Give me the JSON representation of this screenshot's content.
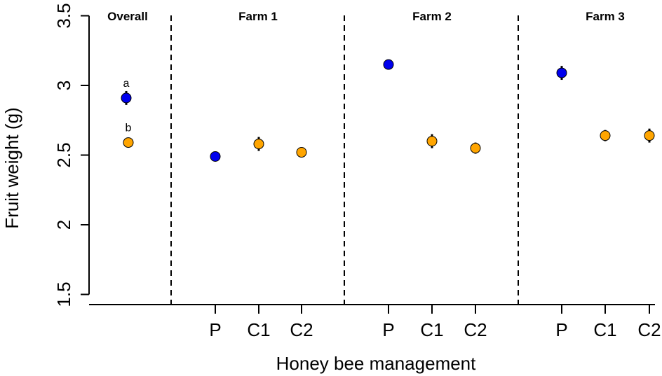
{
  "chart_data": {
    "type": "scatter",
    "title": "",
    "xlabel": "Honey bee management",
    "ylabel": "Fruit weight (g)",
    "ylim": [
      1.45,
      3.5
    ],
    "yticks": [
      "1.5",
      "2",
      "2.5",
      "3",
      "3.5"
    ],
    "grid": false,
    "legend": "none",
    "colors": {
      "P": "#0000ee",
      "C": "#ffa500"
    },
    "panels": [
      {
        "title": "Overall",
        "points": [
          {
            "category": "",
            "group": "P",
            "value": 2.91,
            "err": 0.05,
            "label": "a"
          },
          {
            "category": "",
            "group": "C",
            "value": 2.59,
            "err": 0.03,
            "label": "b"
          }
        ]
      },
      {
        "title": "Farm 1",
        "points": [
          {
            "category": "P",
            "group": "P",
            "value": 2.49,
            "err": 0.02
          },
          {
            "category": "C1",
            "group": "C",
            "value": 2.58,
            "err": 0.05
          },
          {
            "category": "C2",
            "group": "C",
            "value": 2.52,
            "err": 0.03
          }
        ]
      },
      {
        "title": "Farm 2",
        "points": [
          {
            "category": "P",
            "group": "P",
            "value": 3.15,
            "err": 0.02
          },
          {
            "category": "C1",
            "group": "C",
            "value": 2.6,
            "err": 0.05
          },
          {
            "category": "C2",
            "group": "C",
            "value": 2.55,
            "err": 0.04
          }
        ]
      },
      {
        "title": "Farm 3",
        "points": [
          {
            "category": "P",
            "group": "P",
            "value": 3.09,
            "err": 0.05
          },
          {
            "category": "C1",
            "group": "C",
            "value": 2.64,
            "err": 0.04
          },
          {
            "category": "C2",
            "group": "C",
            "value": 2.64,
            "err": 0.05
          }
        ]
      }
    ]
  }
}
